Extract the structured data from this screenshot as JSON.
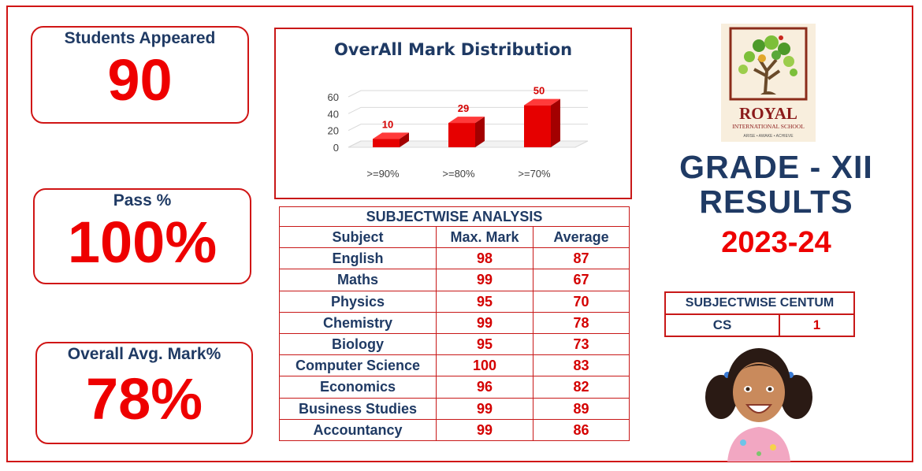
{
  "stats": {
    "students": {
      "label": "Students Appeared",
      "value": "90"
    },
    "pass": {
      "label": "Pass %",
      "value": "100%"
    },
    "average": {
      "label": "Overall Avg. Mark%",
      "value": "78%"
    }
  },
  "chart_data": {
    "type": "bar",
    "title": "OverAll Mark Distribution",
    "categories": [
      ">=90%",
      ">=80%",
      ">=70%"
    ],
    "values": [
      10,
      29,
      50
    ],
    "ylim": [
      0,
      60
    ],
    "yticks": [
      0,
      20,
      40,
      60
    ],
    "grid": true,
    "xlabel": "",
    "ylabel": "",
    "bar_color": "#e60000",
    "label_color": "#d40000"
  },
  "subjectwise": {
    "title": "SUBJECTWISE ANALYSIS",
    "headers": [
      "Subject",
      "Max. Mark",
      "Average"
    ],
    "rows": [
      [
        "English",
        "98",
        "87"
      ],
      [
        "Maths",
        "99",
        "67"
      ],
      [
        "Physics",
        "95",
        "70"
      ],
      [
        "Chemistry",
        "99",
        "78"
      ],
      [
        "Biology",
        "95",
        "73"
      ],
      [
        "Computer Science",
        "100",
        "83"
      ],
      [
        "Economics",
        "96",
        "82"
      ],
      [
        "Business Studies",
        "99",
        "89"
      ],
      [
        "Accountancy",
        "99",
        "86"
      ]
    ]
  },
  "logo": {
    "name": "ROYAL",
    "subtitle": "INTERNATIONAL SCHOOL",
    "tagline": "ARISE • AWAKE • ACHIEVE"
  },
  "grade": {
    "line1": "GRADE - XII",
    "line2": "RESULTS",
    "year": "2023-24"
  },
  "centum": {
    "title": "SUBJECTWISE CENTUM",
    "subject": "CS",
    "count": "1"
  },
  "colors": {
    "accent": "#ee0000",
    "navy": "#1f3a64",
    "border": "#c81818"
  }
}
